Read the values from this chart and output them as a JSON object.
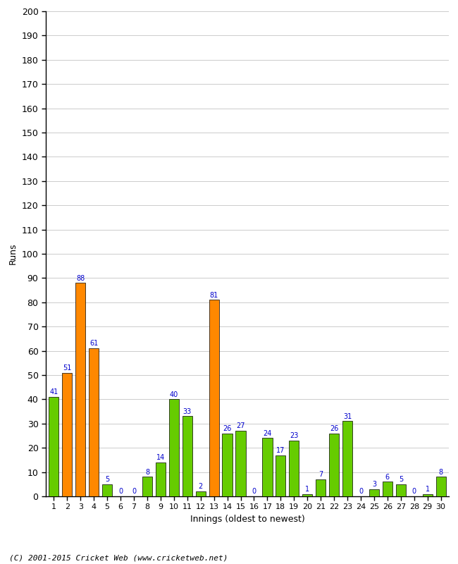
{
  "innings": [
    1,
    2,
    3,
    4,
    5,
    6,
    7,
    8,
    9,
    10,
    11,
    12,
    13,
    14,
    15,
    16,
    17,
    18,
    19,
    20,
    21,
    22,
    23,
    24,
    25,
    26,
    27,
    28,
    29,
    30
  ],
  "values": [
    41,
    51,
    88,
    61,
    5,
    0,
    0,
    8,
    14,
    40,
    33,
    2,
    81,
    26,
    27,
    0,
    24,
    17,
    23,
    1,
    7,
    26,
    31,
    0,
    3,
    6,
    5,
    0,
    1,
    8
  ],
  "colors": [
    "#66cc00",
    "#ff8800",
    "#ff8800",
    "#ff8800",
    "#66cc00",
    "#66cc00",
    "#66cc00",
    "#66cc00",
    "#66cc00",
    "#66cc00",
    "#66cc00",
    "#66cc00",
    "#ff8800",
    "#66cc00",
    "#66cc00",
    "#66cc00",
    "#66cc00",
    "#66cc00",
    "#66cc00",
    "#66cc00",
    "#66cc00",
    "#66cc00",
    "#66cc00",
    "#66cc00",
    "#66cc00",
    "#66cc00",
    "#66cc00",
    "#66cc00",
    "#66cc00",
    "#66cc00"
  ],
  "ylim": [
    0,
    200
  ],
  "yticks": [
    0,
    10,
    20,
    30,
    40,
    50,
    60,
    70,
    80,
    90,
    100,
    110,
    120,
    130,
    140,
    150,
    160,
    170,
    180,
    190,
    200
  ],
  "ylabel": "Runs",
  "xlabel": "Innings (oldest to newest)",
  "footer": "(C) 2001-2015 Cricket Web (www.cricketweb.net)",
  "label_color": "#0000cc",
  "bar_edge_color": "#000000",
  "grid_color": "#cccccc",
  "bg_color": "#ffffff"
}
